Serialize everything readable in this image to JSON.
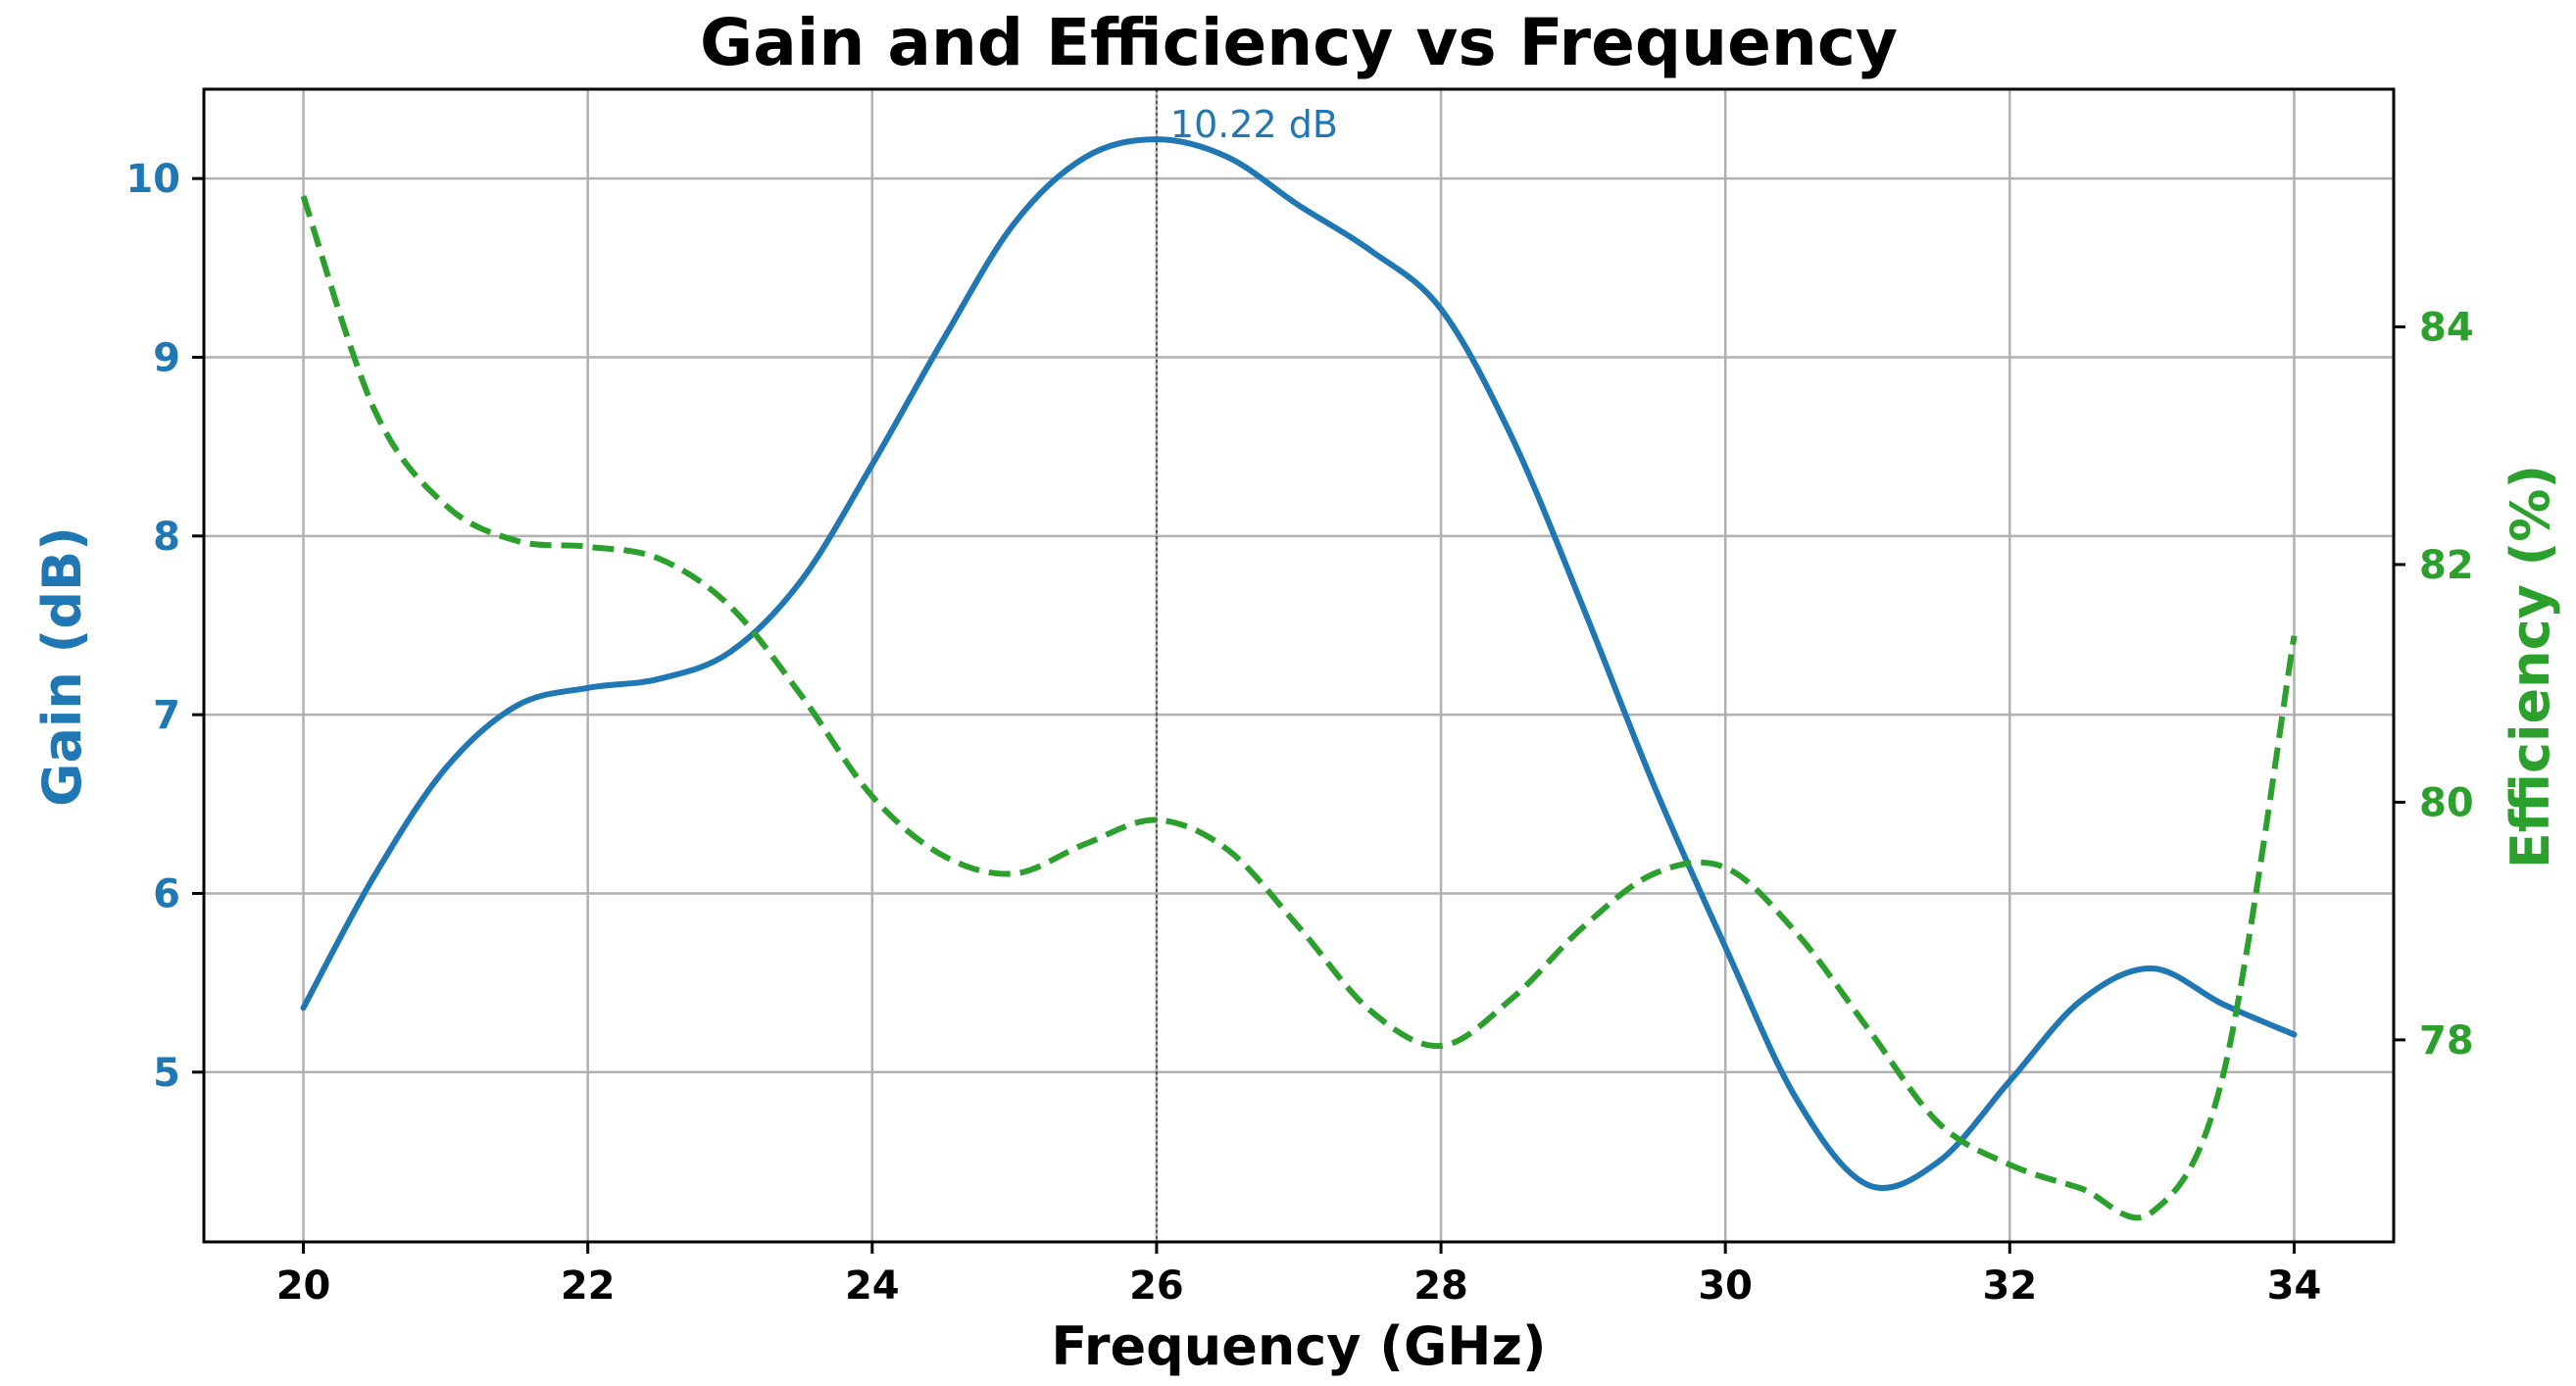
{
  "chart_data": {
    "type": "line",
    "title": "Gain and Efficiency vs Frequency",
    "xlabel": "Frequency (GHz)",
    "ylabel_left": "Gain (dB)",
    "ylabel_right": "Efficiency (%)",
    "xlim": [
      19.3,
      34.7
    ],
    "ylim_left": [
      4.05,
      10.5
    ],
    "ylim_right": [
      76.3,
      86.0
    ],
    "x_ticks": [
      20,
      22,
      24,
      26,
      28,
      30,
      32,
      34
    ],
    "y_left_ticks": [
      5,
      6,
      7,
      8,
      9,
      10
    ],
    "y_right_ticks": [
      78,
      80,
      82,
      84
    ],
    "grid": true,
    "series": [
      {
        "name": "Gain",
        "axis": "left",
        "color": "#1f77b4",
        "style": "solid",
        "x": [
          20,
          20.5,
          21,
          21.5,
          22,
          22.5,
          23,
          23.5,
          24,
          24.5,
          25,
          25.5,
          26,
          26.5,
          27,
          27.5,
          28,
          28.5,
          29,
          29.5,
          30,
          30.5,
          31,
          31.5,
          32,
          32.5,
          33,
          33.5,
          34
        ],
        "values": [
          5.36,
          6.1,
          6.7,
          7.05,
          7.15,
          7.2,
          7.35,
          7.75,
          8.4,
          9.1,
          9.75,
          10.12,
          10.22,
          10.12,
          9.85,
          9.6,
          9.27,
          8.55,
          7.6,
          6.6,
          5.7,
          4.85,
          4.37,
          4.5,
          4.95,
          5.4,
          5.58,
          5.38,
          5.21
        ]
      },
      {
        "name": "Efficiency",
        "axis": "right",
        "color": "#2ca02c",
        "style": "dashed",
        "x": [
          20,
          20.5,
          21,
          21.5,
          22,
          22.5,
          23,
          23.5,
          24,
          24.5,
          25,
          25.5,
          26,
          26.5,
          27,
          27.5,
          28,
          28.5,
          29,
          29.5,
          30,
          30.5,
          31,
          31.5,
          32,
          32.5,
          33,
          33.5,
          34
        ],
        "values": [
          85.1,
          83.3,
          82.5,
          82.2,
          82.15,
          82.05,
          81.65,
          80.9,
          80.05,
          79.55,
          79.4,
          79.65,
          79.85,
          79.6,
          78.95,
          78.25,
          77.95,
          78.35,
          78.95,
          79.4,
          79.45,
          78.9,
          78.1,
          77.3,
          76.95,
          76.75,
          76.55,
          77.7,
          81.4
        ]
      }
    ],
    "annotations": [
      {
        "text": "10.22 dB",
        "x": 26,
        "y": 10.22,
        "axis": "left",
        "color": "#1f77b4",
        "vline": true
      }
    ]
  }
}
